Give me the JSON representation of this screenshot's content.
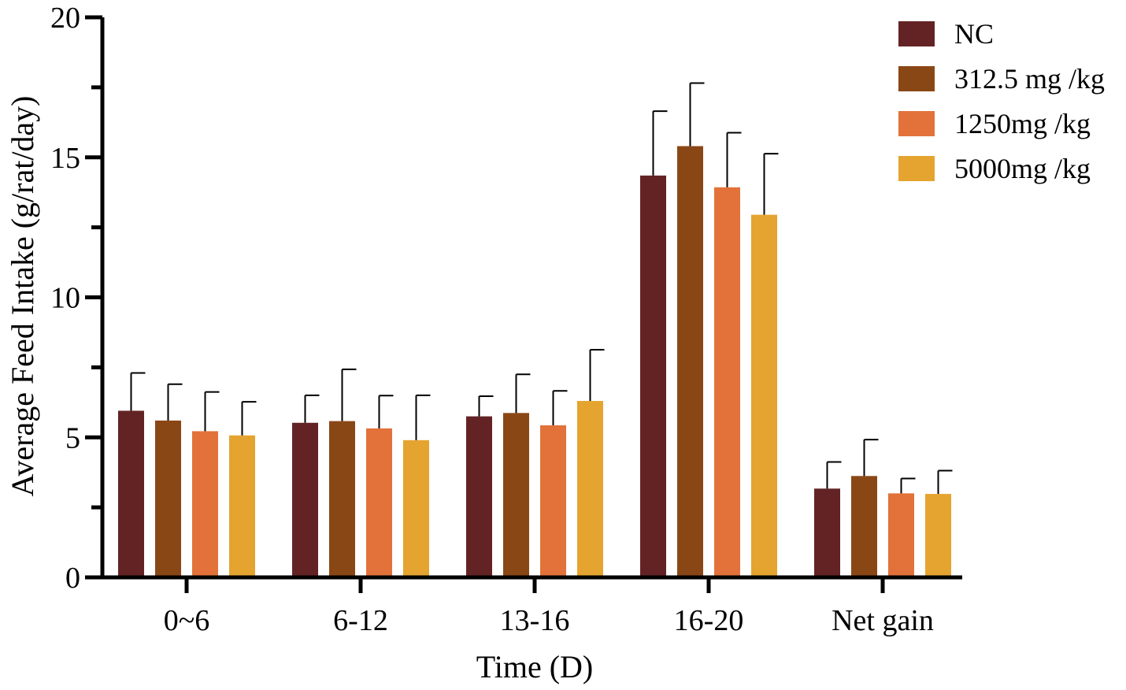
{
  "chart_data": {
    "type": "bar",
    "title": "",
    "xlabel": "Time (D)",
    "ylabel": "Average Feed Intake (g/rat/day)",
    "ylim": [
      0,
      20
    ],
    "y_ticks": [
      "0",
      "5",
      "10",
      "15",
      "20"
    ],
    "grid": false,
    "legend_position": "top-right",
    "categories": [
      "0~6",
      "6-12",
      "13-16",
      "16-20",
      "Net gain"
    ],
    "series": [
      {
        "name": "NC",
        "color": "#632325",
        "values": [
          5.95,
          5.52,
          5.75,
          14.35,
          3.17
        ],
        "errors": [
          1.35,
          0.98,
          0.72,
          2.3,
          0.95
        ]
      },
      {
        "name": "312.5 mg /kg",
        "color": "#8A4716",
        "values": [
          5.6,
          5.58,
          5.87,
          15.4,
          3.62
        ],
        "errors": [
          1.3,
          1.85,
          1.38,
          2.25,
          1.3
        ]
      },
      {
        "name": "1250mg /kg",
        "color": "#E2723A",
        "values": [
          5.22,
          5.32,
          5.43,
          13.93,
          3.0
        ],
        "errors": [
          1.4,
          1.17,
          1.23,
          1.95,
          0.53
        ]
      },
      {
        "name": "5000mg /kg",
        "color": "#E5A42F",
        "values": [
          5.07,
          4.9,
          6.3,
          12.95,
          2.98
        ],
        "errors": [
          1.2,
          1.6,
          1.83,
          2.18,
          0.83
        ]
      }
    ]
  }
}
